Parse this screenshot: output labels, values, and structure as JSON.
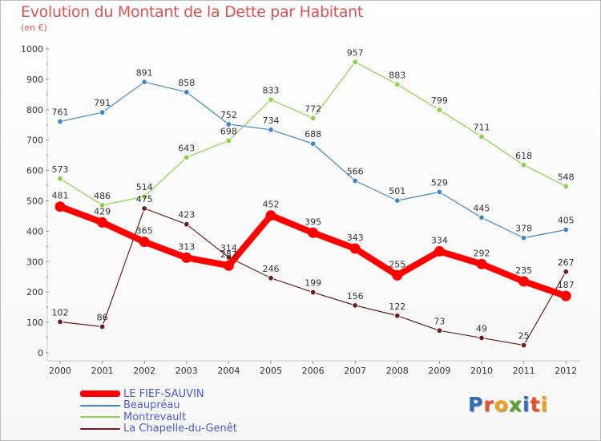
{
  "title": "Evolution du Montant de la Dette par Habitant",
  "subtitle": "(en €)",
  "logo": {
    "text": "Proxiti",
    "colors": [
      "#2f6fb8",
      "#e8502a",
      "#f0a215",
      "#5aa02c",
      "#2f6fb8",
      "#e8502a",
      "#f0a215"
    ]
  },
  "chart_data": {
    "type": "line",
    "x": [
      "2000",
      "2001",
      "2002",
      "2003",
      "2004",
      "2005",
      "2006",
      "2007",
      "2008",
      "2009",
      "2010",
      "2011",
      "2012"
    ],
    "ylim": [
      0,
      1000
    ],
    "yticks": [
      "0",
      "100",
      "200",
      "300",
      "400",
      "500",
      "600",
      "700",
      "800",
      "900",
      "1000"
    ],
    "grid": false,
    "legend_position": "bottom-left",
    "series": [
      {
        "name": "LE FIEF-SAUVIN",
        "color": "#ff0000",
        "values": [
          481,
          429,
          365,
          313,
          287,
          452,
          395,
          343,
          255,
          334,
          292,
          235,
          187
        ],
        "labels": [
          "481",
          "429",
          "365",
          "313",
          "287",
          "452",
          "395",
          "343",
          "255",
          "334",
          "292",
          "235",
          "187"
        ]
      },
      {
        "name": "Beaupréau",
        "color": "#3d87c9",
        "values": [
          761,
          791,
          891,
          858,
          752,
          734,
          688,
          566,
          501,
          529,
          445,
          378,
          405
        ],
        "labels": [
          "761",
          "791",
          "891",
          "858",
          "752",
          "734",
          "688",
          "566",
          "501",
          "529",
          "445",
          "378",
          "405"
        ]
      },
      {
        "name": "Montrevault",
        "color": "#8bd04b",
        "values": [
          573,
          486,
          514,
          643,
          698,
          833,
          772,
          957,
          883,
          799,
          711,
          618,
          548
        ],
        "labels": [
          "573",
          "486",
          "514",
          "643",
          "698",
          "833",
          "772",
          "957",
          "883",
          "799",
          "711",
          "618",
          "548"
        ]
      },
      {
        "name": "La Chapelle-du-Genêt",
        "color": "#6b1f1f",
        "values": [
          102,
          86,
          475,
          423,
          314,
          246,
          199,
          156,
          122,
          73,
          49,
          25,
          267
        ],
        "labels": [
          "102",
          "86",
          "475",
          "423",
          "314",
          "246",
          "199",
          "156",
          "122",
          "73",
          "49",
          "25",
          "267"
        ]
      }
    ]
  }
}
